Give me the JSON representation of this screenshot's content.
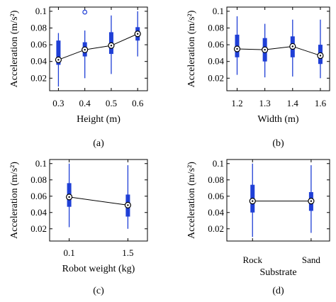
{
  "chart_data": [
    {
      "type": "box",
      "panel_label": "(a)",
      "xlabel": "Height (m)",
      "ylabel": "Acceleration (m/s²)",
      "categories": [
        "0.3",
        "0.4",
        "0.5",
        "0.6"
      ],
      "yticks": [
        "0.02",
        "0.04",
        "0.06",
        "0.08",
        "0.1"
      ],
      "ylim": [
        0.005,
        0.105
      ],
      "medians": [
        0.042,
        0.054,
        0.059,
        0.073
      ],
      "q1": [
        0.036,
        0.046,
        0.049,
        0.065
      ],
      "q3": [
        0.065,
        0.063,
        0.075,
        0.081
      ],
      "whisker_low": [
        0.01,
        0.02,
        0.025,
        0.046
      ],
      "whisker_high": [
        0.074,
        0.077,
        0.095,
        0.1
      ],
      "outliers": [
        [],
        [
          0.099
        ],
        [],
        []
      ],
      "median_line": true,
      "grid": false
    },
    {
      "type": "box",
      "panel_label": "(b)",
      "xlabel": "Width (m)",
      "ylabel": "Acceleration (m/s²)",
      "categories": [
        "1.2",
        "1.3",
        "1.4",
        "1.6"
      ],
      "yticks": [
        "0.02",
        "0.04",
        "0.06",
        "0.08",
        "0.1"
      ],
      "ylim": [
        0.005,
        0.105
      ],
      "medians": [
        0.055,
        0.054,
        0.058,
        0.047
      ],
      "q1": [
        0.045,
        0.04,
        0.045,
        0.037
      ],
      "q3": [
        0.072,
        0.068,
        0.07,
        0.06
      ],
      "whisker_low": [
        0.024,
        0.021,
        0.022,
        0.02
      ],
      "whisker_high": [
        0.094,
        0.085,
        0.09,
        0.09
      ],
      "outliers": [
        [],
        [],
        [],
        []
      ],
      "median_line": true,
      "grid": false
    },
    {
      "type": "box",
      "panel_label": "(c)",
      "xlabel": "Robot weight (kg)",
      "ylabel": "Acceleration (m/s²)",
      "categories": [
        "0.1",
        "1.5"
      ],
      "yticks": [
        "0.02",
        "0.04",
        "0.06",
        "0.08",
        "0.1"
      ],
      "ylim": [
        0.005,
        0.105
      ],
      "medians": [
        0.059,
        0.049
      ],
      "q1": [
        0.047,
        0.035
      ],
      "q3": [
        0.076,
        0.062
      ],
      "whisker_low": [
        0.022,
        0.02
      ],
      "whisker_high": [
        0.1,
        0.098
      ],
      "outliers": [
        [],
        []
      ],
      "median_line": true,
      "grid": false
    },
    {
      "type": "box",
      "panel_label": "(d)",
      "xlabel": "Substrate",
      "ylabel": "Acceleration (m/s²)",
      "categories": [
        "Rock",
        "Sand"
      ],
      "yticks": [
        "0.02",
        "0.04",
        "0.06",
        "0.08",
        "0.1"
      ],
      "ylim": [
        0.005,
        0.105
      ],
      "medians": [
        0.054,
        0.054
      ],
      "q1": [
        0.04,
        0.042
      ],
      "q3": [
        0.074,
        0.065
      ],
      "whisker_low": [
        0.01,
        0.015
      ],
      "whisker_high": [
        0.1,
        0.098
      ],
      "outliers": [
        [],
        []
      ],
      "median_line": true,
      "grid": false
    }
  ]
}
